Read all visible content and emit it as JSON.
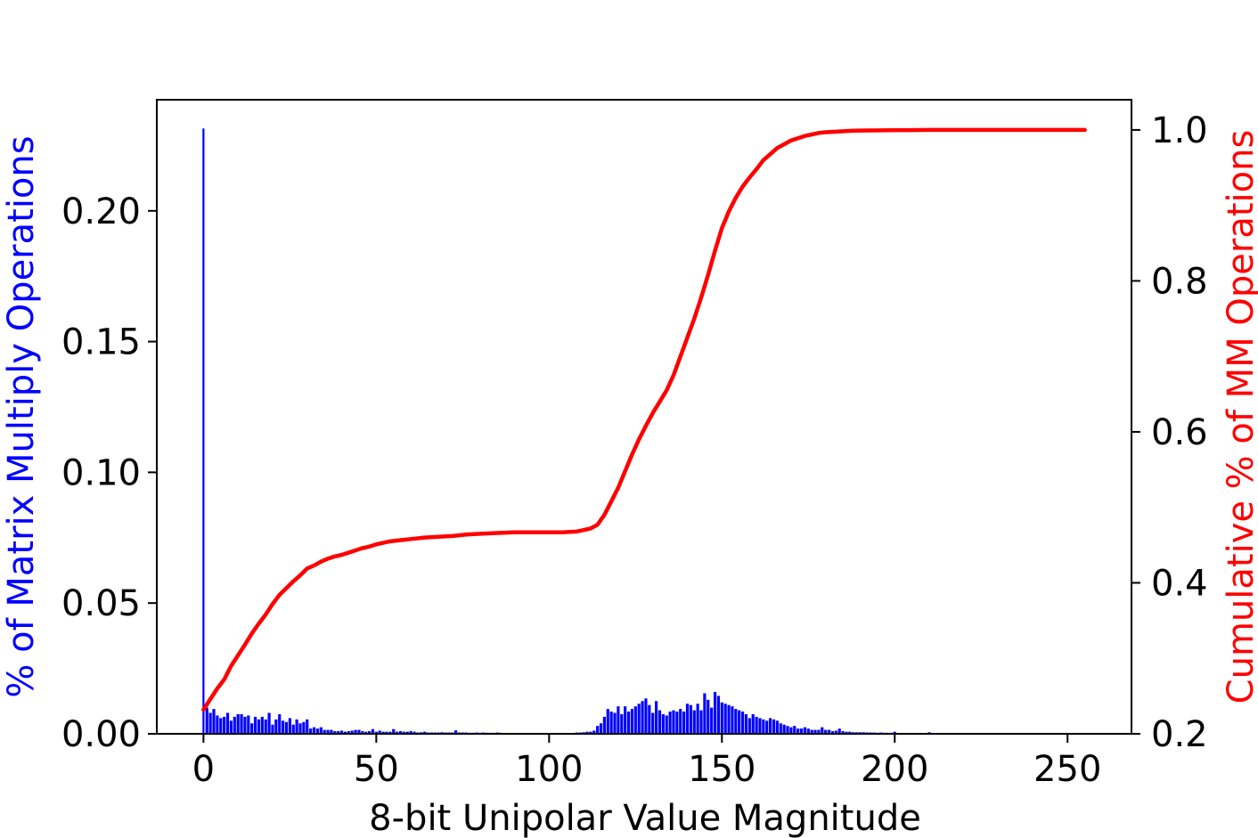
{
  "chart_data": {
    "type": "bar",
    "title": "",
    "xlabel": "8-bit Unipolar Value Magnitude",
    "ylabel": "% of Matrix Multiply Operations",
    "y2label": "Cumulative % of MM Operations",
    "xlim": [
      -13.5,
      268.5
    ],
    "ylim": [
      0,
      0.2425
    ],
    "y2lim": [
      0.2,
      1.04
    ],
    "xticks": [
      "0",
      "50",
      "100",
      "150",
      "200",
      "250"
    ],
    "yticks": [
      "0.00",
      "0.05",
      "0.10",
      "0.15",
      "0.20"
    ],
    "y2ticks": [
      "0.2",
      "0.4",
      "0.6",
      "0.8",
      "1.0"
    ],
    "grid": false,
    "legend": "none",
    "colors": {
      "bars": "#0000ff",
      "cumulative": "#ff0000",
      "ylabel": "#0000ff",
      "y2label": "#ff0000"
    },
    "series": [
      {
        "axis": "left",
        "kind": "bar",
        "points": [
          [
            0,
            0.2315
          ],
          [
            1,
            0.01
          ],
          [
            2,
            0.008
          ],
          [
            3,
            0.0095
          ],
          [
            4,
            0.007
          ],
          [
            5,
            0.006
          ],
          [
            6,
            0.0065
          ],
          [
            7,
            0.008
          ],
          [
            8,
            0.005
          ],
          [
            9,
            0.0065
          ],
          [
            10,
            0.0075
          ],
          [
            11,
            0.0075
          ],
          [
            12,
            0.0065
          ],
          [
            13,
            0.007
          ],
          [
            14,
            0.004
          ],
          [
            15,
            0.0065
          ],
          [
            16,
            0.0055
          ],
          [
            17,
            0.0065
          ],
          [
            18,
            0.0055
          ],
          [
            19,
            0.008
          ],
          [
            20,
            0.0035
          ],
          [
            21,
            0.0055
          ],
          [
            22,
            0.0075
          ],
          [
            23,
            0.005
          ],
          [
            24,
            0.0045
          ],
          [
            25,
            0.006
          ],
          [
            26,
            0.0035
          ],
          [
            27,
            0.0055
          ],
          [
            28,
            0.004
          ],
          [
            29,
            0.0045
          ],
          [
            30,
            0.0055
          ],
          [
            31,
            0.002
          ],
          [
            32,
            0.0025
          ],
          [
            33,
            0.002
          ],
          [
            34,
            0.0025
          ],
          [
            35,
            0.0015
          ],
          [
            36,
            0.0015
          ],
          [
            37,
            0.0015
          ],
          [
            38,
            0.001
          ],
          [
            39,
            0.001
          ],
          [
            40,
            0.0012
          ],
          [
            41,
            0.0008
          ],
          [
            42,
            0.001
          ],
          [
            43,
            0.0012
          ],
          [
            44,
            0.0015
          ],
          [
            45,
            0.0015
          ],
          [
            46,
            0.001
          ],
          [
            47,
            0.0008
          ],
          [
            48,
            0.001
          ],
          [
            49,
            0.0018
          ],
          [
            50,
            0.0008
          ],
          [
            51,
            0.0012
          ],
          [
            52,
            0.0008
          ],
          [
            53,
            0.0008
          ],
          [
            54,
            0.0008
          ],
          [
            55,
            0.0018
          ],
          [
            56,
            0.0008
          ],
          [
            57,
            0.001
          ],
          [
            58,
            0.0008
          ],
          [
            59,
            0.0008
          ],
          [
            60,
            0.001
          ],
          [
            61,
            0.0008
          ],
          [
            62,
            0.0005
          ],
          [
            63,
            0.0006
          ],
          [
            64,
            0.0008
          ],
          [
            65,
            0.0005
          ],
          [
            66,
            0.0005
          ],
          [
            67,
            0.0005
          ],
          [
            68,
            0.0005
          ],
          [
            69,
            0.0006
          ],
          [
            70,
            0.0005
          ],
          [
            71,
            0.0005
          ],
          [
            72,
            0.0005
          ],
          [
            73,
            0.0013
          ],
          [
            74,
            0.0005
          ],
          [
            75,
            0.0005
          ],
          [
            76,
            0.0005
          ],
          [
            77,
            0.0004
          ],
          [
            78,
            0.0004
          ],
          [
            79,
            0.0005
          ],
          [
            80,
            0.0004
          ],
          [
            81,
            0.0005
          ],
          [
            82,
            0.0004
          ],
          [
            83,
            0.0004
          ],
          [
            84,
            0.0004
          ],
          [
            85,
            0.0005
          ],
          [
            86,
            0.0004
          ],
          [
            87,
            0.0003
          ],
          [
            88,
            0.0003
          ],
          [
            89,
            0.0003
          ],
          [
            90,
            0.0003
          ],
          [
            91,
            0.0003
          ],
          [
            92,
            0.0003
          ],
          [
            93,
            0.0003
          ],
          [
            94,
            0.0003
          ],
          [
            95,
            0.0003
          ],
          [
            96,
            0.0003
          ],
          [
            97,
            0.0003
          ],
          [
            98,
            0.0003
          ],
          [
            99,
            0.0003
          ],
          [
            100,
            0.0003
          ],
          [
            101,
            0.0003
          ],
          [
            102,
            0.0003
          ],
          [
            103,
            0.0003
          ],
          [
            104,
            0.0003
          ],
          [
            105,
            0.0003
          ],
          [
            106,
            0.0003
          ],
          [
            107,
            0.0003
          ],
          [
            108,
            0.0005
          ],
          [
            109,
            0.0005
          ],
          [
            110,
            0.0006
          ],
          [
            111,
            0.0008
          ],
          [
            112,
            0.0008
          ],
          [
            113,
            0.0012
          ],
          [
            114,
            0.003
          ],
          [
            115,
            0.004
          ],
          [
            116,
            0.0065
          ],
          [
            117,
            0.0095
          ],
          [
            118,
            0.0085
          ],
          [
            119,
            0.008
          ],
          [
            120,
            0.0105
          ],
          [
            121,
            0.0075
          ],
          [
            122,
            0.0105
          ],
          [
            123,
            0.0085
          ],
          [
            124,
            0.0095
          ],
          [
            125,
            0.0105
          ],
          [
            126,
            0.0115
          ],
          [
            127,
            0.0125
          ],
          [
            128,
            0.0135
          ],
          [
            129,
            0.011
          ],
          [
            130,
            0.008
          ],
          [
            131,
            0.0125
          ],
          [
            132,
            0.009
          ],
          [
            133,
            0.0075
          ],
          [
            134,
            0.007
          ],
          [
            135,
            0.0085
          ],
          [
            136,
            0.009
          ],
          [
            137,
            0.0085
          ],
          [
            138,
            0.0095
          ],
          [
            139,
            0.0085
          ],
          [
            140,
            0.0115
          ],
          [
            141,
            0.011
          ],
          [
            142,
            0.009
          ],
          [
            143,
            0.0115
          ],
          [
            144,
            0.009
          ],
          [
            145,
            0.0155
          ],
          [
            146,
            0.013
          ],
          [
            147,
            0.01
          ],
          [
            148,
            0.016
          ],
          [
            149,
            0.0145
          ],
          [
            150,
            0.012
          ],
          [
            151,
            0.0115
          ],
          [
            152,
            0.011
          ],
          [
            153,
            0.0105
          ],
          [
            154,
            0.0095
          ],
          [
            155,
            0.009
          ],
          [
            156,
            0.0085
          ],
          [
            157,
            0.0075
          ],
          [
            158,
            0.006
          ],
          [
            159,
            0.0075
          ],
          [
            160,
            0.0065
          ],
          [
            161,
            0.006
          ],
          [
            162,
            0.0055
          ],
          [
            163,
            0.005
          ],
          [
            164,
            0.006
          ],
          [
            165,
            0.0055
          ],
          [
            166,
            0.005
          ],
          [
            167,
            0.004
          ],
          [
            168,
            0.0035
          ],
          [
            169,
            0.003
          ],
          [
            170,
            0.0025
          ],
          [
            171,
            0.003
          ],
          [
            172,
            0.002
          ],
          [
            173,
            0.002
          ],
          [
            174,
            0.0025
          ],
          [
            175,
            0.002
          ],
          [
            176,
            0.0015
          ],
          [
            177,
            0.0015
          ],
          [
            178,
            0.0015
          ],
          [
            179,
            0.0025
          ],
          [
            180,
            0.0015
          ],
          [
            181,
            0.0015
          ],
          [
            182,
            0.001
          ],
          [
            183,
            0.0012
          ],
          [
            184,
            0.002
          ],
          [
            185,
            0.001
          ],
          [
            186,
            0.0008
          ],
          [
            187,
            0.0008
          ],
          [
            188,
            0.0006
          ],
          [
            189,
            0.0006
          ],
          [
            190,
            0.0006
          ],
          [
            191,
            0.0006
          ],
          [
            192,
            0.0005
          ],
          [
            193,
            0.0005
          ],
          [
            194,
            0.0005
          ],
          [
            195,
            0.0004
          ],
          [
            196,
            0.0005
          ],
          [
            197,
            0.0004
          ],
          [
            198,
            0.0004
          ],
          [
            199,
            0.0004
          ],
          [
            200,
            0.0008
          ],
          [
            201,
            0.0003
          ],
          [
            202,
            0.0003
          ],
          [
            203,
            0.0003
          ],
          [
            204,
            0.0003
          ],
          [
            205,
            0.0003
          ],
          [
            206,
            0.0003
          ],
          [
            207,
            0.0003
          ],
          [
            208,
            0.0003
          ],
          [
            209,
            0.0003
          ],
          [
            210,
            0.0006
          ]
        ]
      },
      {
        "axis": "right",
        "kind": "line",
        "points": [
          [
            0,
            0.232
          ],
          [
            2,
            0.246
          ],
          [
            4,
            0.26
          ],
          [
            6,
            0.272
          ],
          [
            8,
            0.29
          ],
          [
            10,
            0.304
          ],
          [
            12,
            0.318
          ],
          [
            14,
            0.333
          ],
          [
            16,
            0.346
          ],
          [
            18,
            0.358
          ],
          [
            20,
            0.372
          ],
          [
            22,
            0.384
          ],
          [
            24,
            0.393
          ],
          [
            26,
            0.402
          ],
          [
            28,
            0.41
          ],
          [
            30,
            0.419
          ],
          [
            32,
            0.423
          ],
          [
            34,
            0.428
          ],
          [
            36,
            0.432
          ],
          [
            38,
            0.435
          ],
          [
            40,
            0.437
          ],
          [
            42,
            0.44
          ],
          [
            44,
            0.443
          ],
          [
            46,
            0.446
          ],
          [
            48,
            0.448
          ],
          [
            50,
            0.451
          ],
          [
            52,
            0.453
          ],
          [
            54,
            0.455
          ],
          [
            56,
            0.456
          ],
          [
            58,
            0.457
          ],
          [
            60,
            0.458
          ],
          [
            64,
            0.46
          ],
          [
            68,
            0.461
          ],
          [
            72,
            0.462
          ],
          [
            76,
            0.464
          ],
          [
            80,
            0.465
          ],
          [
            85,
            0.466
          ],
          [
            90,
            0.467
          ],
          [
            95,
            0.467
          ],
          [
            100,
            0.467
          ],
          [
            104,
            0.467
          ],
          [
            108,
            0.468
          ],
          [
            110,
            0.47
          ],
          [
            112,
            0.472
          ],
          [
            114,
            0.477
          ],
          [
            116,
            0.49
          ],
          [
            118,
            0.508
          ],
          [
            120,
            0.526
          ],
          [
            122,
            0.548
          ],
          [
            124,
            0.57
          ],
          [
            126,
            0.59
          ],
          [
            128,
            0.608
          ],
          [
            130,
            0.625
          ],
          [
            132,
            0.64
          ],
          [
            134,
            0.655
          ],
          [
            136,
            0.675
          ],
          [
            138,
            0.7
          ],
          [
            140,
            0.725
          ],
          [
            142,
            0.75
          ],
          [
            144,
            0.778
          ],
          [
            146,
            0.808
          ],
          [
            148,
            0.84
          ],
          [
            150,
            0.87
          ],
          [
            152,
            0.892
          ],
          [
            154,
            0.91
          ],
          [
            156,
            0.925
          ],
          [
            158,
            0.937
          ],
          [
            160,
            0.948
          ],
          [
            162,
            0.96
          ],
          [
            164,
            0.968
          ],
          [
            166,
            0.976
          ],
          [
            168,
            0.981
          ],
          [
            170,
            0.986
          ],
          [
            172,
            0.989
          ],
          [
            174,
            0.992
          ],
          [
            176,
            0.994
          ],
          [
            178,
            0.996
          ],
          [
            180,
            0.997
          ],
          [
            184,
            0.998
          ],
          [
            188,
            0.999
          ],
          [
            192,
            0.9993
          ],
          [
            196,
            0.9995
          ],
          [
            200,
            0.9997
          ],
          [
            204,
            0.9998
          ],
          [
            210,
            1.0
          ],
          [
            255,
            1.0
          ]
        ]
      }
    ]
  }
}
